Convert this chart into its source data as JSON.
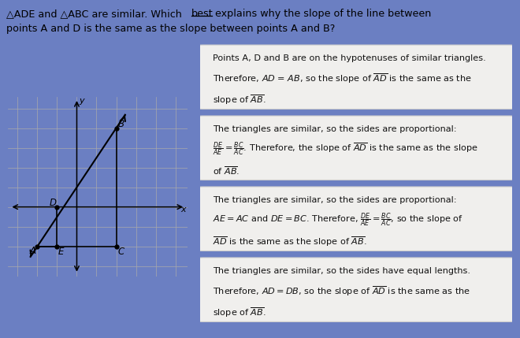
{
  "bg_color": "#6b7fc2",
  "graph_bg": "#b8c0d8",
  "card_bg": "#f0efed",
  "card_edge": "#cccccc",
  "title_line1": "△ADE and △ABC are similar. Which best explains why the slope of the line between",
  "title_line2": "points A and D is the same as the slope between points A and B?",
  "graph": {
    "xlim": [
      -3,
      5
    ],
    "ylim": [
      -3,
      5
    ],
    "points": {
      "A": [
        -2,
        -2
      ],
      "B": [
        2,
        4
      ],
      "D": [
        -1,
        0
      ],
      "E": [
        -1,
        -2
      ],
      "C": [
        2,
        -2
      ]
    }
  },
  "cards": [
    {
      "lines": [
        "Points $\\\\mathit{A}$, $\\\\mathit{D}$ and $\\\\mathit{B}$ are on the hypotenuses of similar triangles.",
        "Therefore, $\\\\mathit{AD}$ = $\\\\mathit{AB}$, so the slope of $\\\\overline{\\\\mathit{AD}}$ is the same as the",
        "slope of $\\\\overline{\\\\mathit{AB}}$."
      ]
    },
    {
      "lines": [
        "The triangles are similar, so the sides are proportional:",
        "$\\\\dfrac{DE}{AE} = \\\\dfrac{BC}{AC}$. Therefore, the slope of $\\\\overline{\\\\mathit{AD}}$ is the same as the slope",
        "of $\\\\overline{\\\\mathit{AB}}$."
      ]
    },
    {
      "lines": [
        "The triangles are similar, so the sides are proportional:",
        "$\\\\mathit{AE} = \\\\mathit{AC}$ and $\\\\mathit{DE} = \\\\mathit{BC}$. Therefore, $\\\\dfrac{DE}{AE} = \\\\dfrac{BC}{AC}$, so the slope of",
        "$\\\\overline{\\\\mathit{AD}}$ is the same as the slope of $\\\\overline{\\\\mathit{AB}}$."
      ]
    },
    {
      "lines": [
        "The triangles are similar, so the sides have equal lengths.",
        "Therefore, $\\\\mathit{AD}$ = $\\\\mathit{DB}$, so the slope of $\\\\overline{\\\\mathit{AD}}$ is the same as the",
        "slope of $\\\\overline{\\\\mathit{AB}}$."
      ]
    }
  ]
}
